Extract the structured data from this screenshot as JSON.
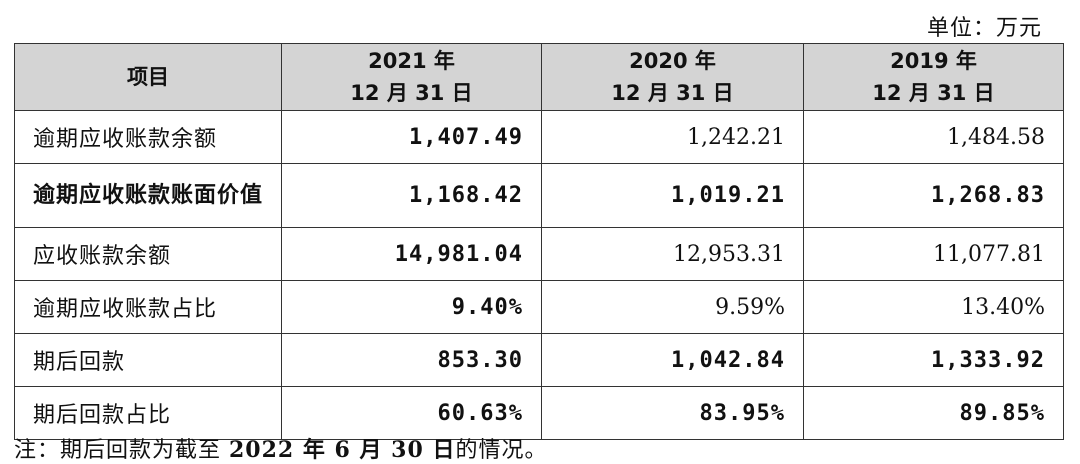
{
  "unit": "单位：万元",
  "header": {
    "item": "项目",
    "cols": [
      {
        "year": "2021 年",
        "date": "12 月 31 日"
      },
      {
        "year": "2020 年",
        "date": "12 月 31 日"
      },
      {
        "year": "2019 年",
        "date": "12 月 31 日"
      }
    ]
  },
  "rows": [
    {
      "label": "逾期应收账款余额",
      "values": [
        "1,407.49",
        "1,242.21",
        "1,484.58"
      ],
      "bold": [
        true,
        false,
        false
      ],
      "label_bold": false
    },
    {
      "label": "逾期应收账款账面价值",
      "values": [
        "1,168.42",
        "1,019.21",
        "1,268.83"
      ],
      "bold": [
        true,
        true,
        true
      ],
      "label_bold": true
    },
    {
      "label": "应收账款余额",
      "values": [
        "14,981.04",
        "12,953.31",
        "11,077.81"
      ],
      "bold": [
        true,
        false,
        false
      ],
      "label_bold": false
    },
    {
      "label": "逾期应收账款占比",
      "values": [
        "9.40%",
        "9.59%",
        "13.40%"
      ],
      "bold": [
        true,
        false,
        false
      ],
      "label_bold": false
    },
    {
      "label": "期后回款",
      "values": [
        "853.30",
        "1,042.84",
        "1,333.92"
      ],
      "bold": [
        true,
        true,
        true
      ],
      "label_bold": false
    },
    {
      "label": "期后回款占比",
      "values": [
        "60.63%",
        "83.95%",
        "89.85%"
      ],
      "bold": [
        true,
        true,
        true
      ],
      "label_bold": false
    }
  ],
  "note": {
    "prefix": "注：期后回款为截至 ",
    "date": "2022 年 6 月 30 日",
    "suffix": "的情况。"
  }
}
